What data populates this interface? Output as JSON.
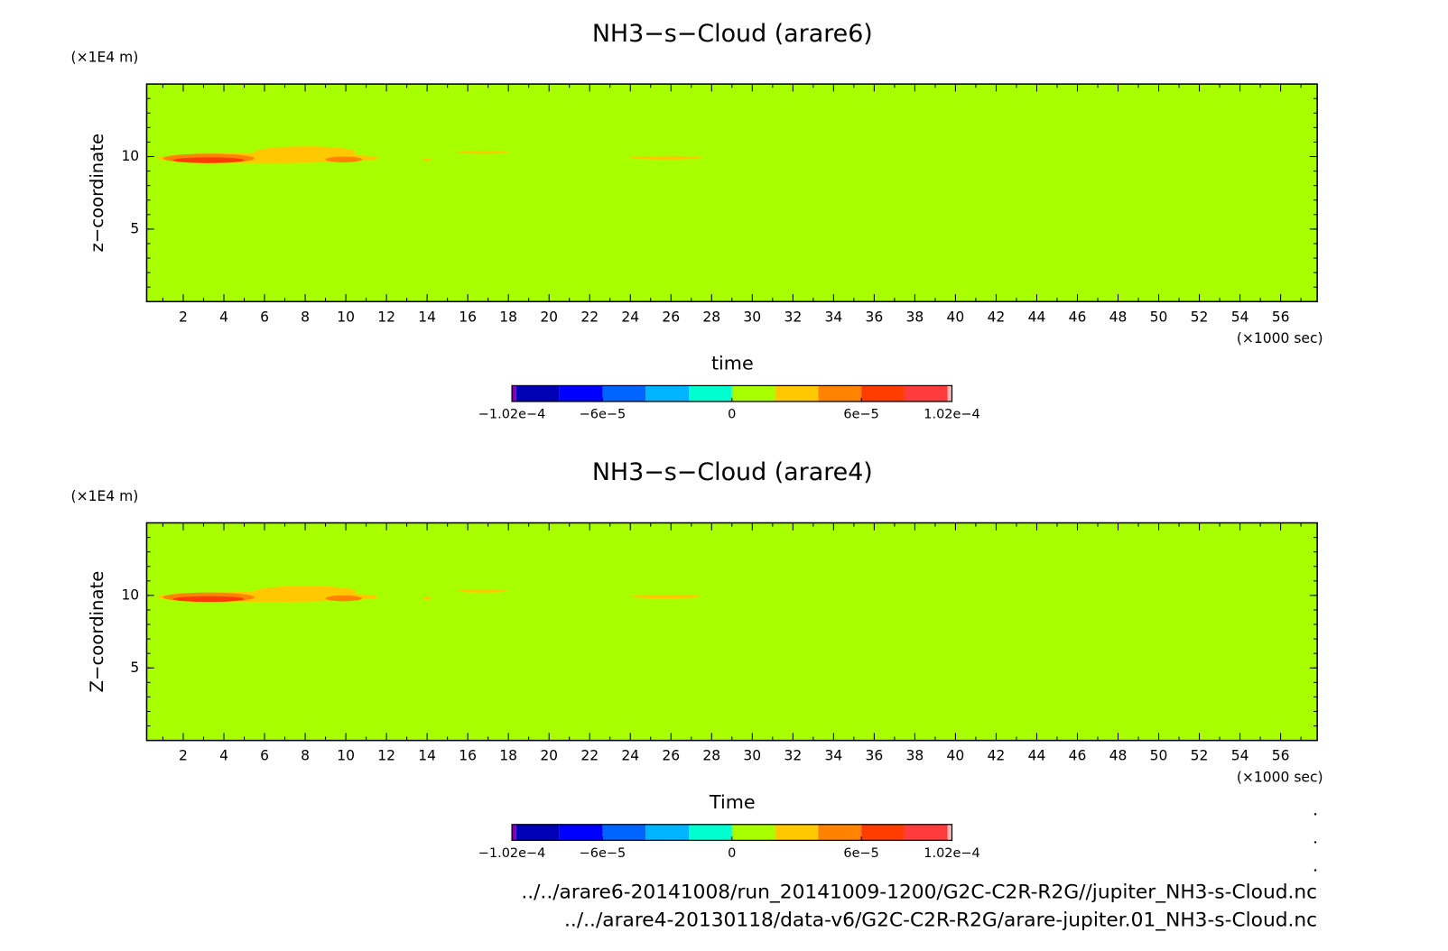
{
  "chart_data": [
    {
      "type": "contour",
      "title": "NH3−s−Cloud (arare6)",
      "x_label": "time",
      "x_unit": "(×1000 sec)",
      "y_label": "z−coordinate",
      "y_unit": "(×1E4 m)",
      "xlim": [
        0.2,
        57.8
      ],
      "ylim": [
        0,
        15
      ],
      "xticks": [
        2,
        4,
        6,
        8,
        10,
        12,
        14,
        16,
        18,
        20,
        22,
        24,
        26,
        28,
        30,
        32,
        34,
        36,
        38,
        40,
        42,
        44,
        46,
        48,
        50,
        52,
        54,
        56
      ],
      "yticks": [
        5,
        10
      ],
      "fill_value": 0,
      "regions": [
        {
          "x": [
            0.7,
            11.6
          ],
          "z": [
            9.55,
            10.25
          ],
          "value": 3e-05
        },
        {
          "x": [
            5.5,
            10.5
          ],
          "z": [
            9.9,
            10.7
          ],
          "value": 3e-05
        },
        {
          "x": [
            1,
            5.5
          ],
          "z": [
            9.55,
            10.2
          ],
          "value": 5e-05
        },
        {
          "x": [
            1.5,
            5
          ],
          "z": [
            9.55,
            9.95
          ],
          "value": 7e-05
        },
        {
          "x": [
            9,
            10.8
          ],
          "z": [
            9.6,
            10
          ],
          "value": 5e-05
        },
        {
          "x": [
            15.5,
            18
          ],
          "z": [
            10.2,
            10.4
          ],
          "value": 3e-05
        },
        {
          "x": [
            24,
            27.5
          ],
          "z": [
            9.8,
            10.05
          ],
          "value": 3e-05
        },
        {
          "x": [
            13.8,
            14.2
          ],
          "z": [
            9.7,
            9.9
          ],
          "value": 3e-05
        }
      ],
      "colorbar": {
        "levels": [
          -0.000102,
          -0.0001,
          -8e-05,
          -6e-05,
          -4e-05,
          -2e-05,
          0,
          2e-05,
          4e-05,
          6e-05,
          8e-05,
          0.0001,
          0.000102
        ],
        "colors": [
          "#8000b0",
          "#0000b4",
          "#0000ff",
          "#0064ff",
          "#00b4ff",
          "#00ffd0",
          "#a8ff00",
          "#ffc800",
          "#ff8200",
          "#ff3c00",
          "#ff3c3c",
          "#ffb4b4"
        ],
        "ticks": [
          {
            "value": -0.000102,
            "label": "−1.02e−4"
          },
          {
            "value": -6e-05,
            "label": "−6e−5"
          },
          0,
          {
            "value": 6e-05,
            "label": "6e−5"
          },
          {
            "value": 0.000102,
            "label": "1.02e−4"
          }
        ]
      }
    },
    {
      "type": "contour",
      "title": "NH3−s−Cloud (arare4)",
      "x_label": "Time",
      "x_unit": "(×1000 sec)",
      "y_label": "Z−coordinate",
      "y_unit": "(×1E4 m)",
      "xlim": [
        0.2,
        57.8
      ],
      "ylim": [
        0,
        15
      ],
      "xticks": [
        2,
        4,
        6,
        8,
        10,
        12,
        14,
        16,
        18,
        20,
        22,
        24,
        26,
        28,
        30,
        32,
        34,
        36,
        38,
        40,
        42,
        44,
        46,
        48,
        50,
        52,
        54,
        56
      ],
      "yticks": [
        5,
        10
      ],
      "fill_value": 0,
      "regions": [
        {
          "x": [
            0.7,
            11.6
          ],
          "z": [
            9.55,
            10.25
          ],
          "value": 3e-05
        },
        {
          "x": [
            5.5,
            10.5
          ],
          "z": [
            9.9,
            10.65
          ],
          "value": 3e-05
        },
        {
          "x": [
            1,
            5.5
          ],
          "z": [
            9.55,
            10.2
          ],
          "value": 5e-05
        },
        {
          "x": [
            1.5,
            5
          ],
          "z": [
            9.55,
            9.95
          ],
          "value": 7e-05
        },
        {
          "x": [
            9,
            10.8
          ],
          "z": [
            9.6,
            10
          ],
          "value": 5e-05
        },
        {
          "x": [
            15.5,
            18
          ],
          "z": [
            10.2,
            10.4
          ],
          "value": 3e-05
        },
        {
          "x": [
            24,
            27.5
          ],
          "z": [
            9.8,
            10.05
          ],
          "value": 3e-05
        },
        {
          "x": [
            13.8,
            14.2
          ],
          "z": [
            9.7,
            9.9
          ],
          "value": 3e-05
        }
      ],
      "colorbar": {
        "levels": [
          -0.000102,
          -0.0001,
          -8e-05,
          -6e-05,
          -4e-05,
          -2e-05,
          0,
          2e-05,
          4e-05,
          6e-05,
          8e-05,
          0.0001,
          0.000102
        ],
        "colors": [
          "#8000b0",
          "#0000b4",
          "#0000ff",
          "#0064ff",
          "#00b4ff",
          "#00ffd0",
          "#a8ff00",
          "#ffc800",
          "#ff8200",
          "#ff3c00",
          "#ff3c3c",
          "#ffb4b4"
        ],
        "ticks": [
          {
            "value": -0.000102,
            "label": "−1.02e−4"
          },
          {
            "value": -6e-05,
            "label": "−6e−5"
          },
          0,
          {
            "value": 6e-05,
            "label": "6e−5"
          },
          {
            "value": 0.000102,
            "label": "1.02e−4"
          }
        ]
      }
    }
  ],
  "footer": [
    "../../arare6-20141008/run_20141009-1200/G2C-C2R-R2G//jupiter_NH3-s-Cloud.nc",
    "../../arare4-20130118/data-v6/G2C-C2R-R2G/arare-jupiter.01_NH3-s-Cloud.nc"
  ]
}
